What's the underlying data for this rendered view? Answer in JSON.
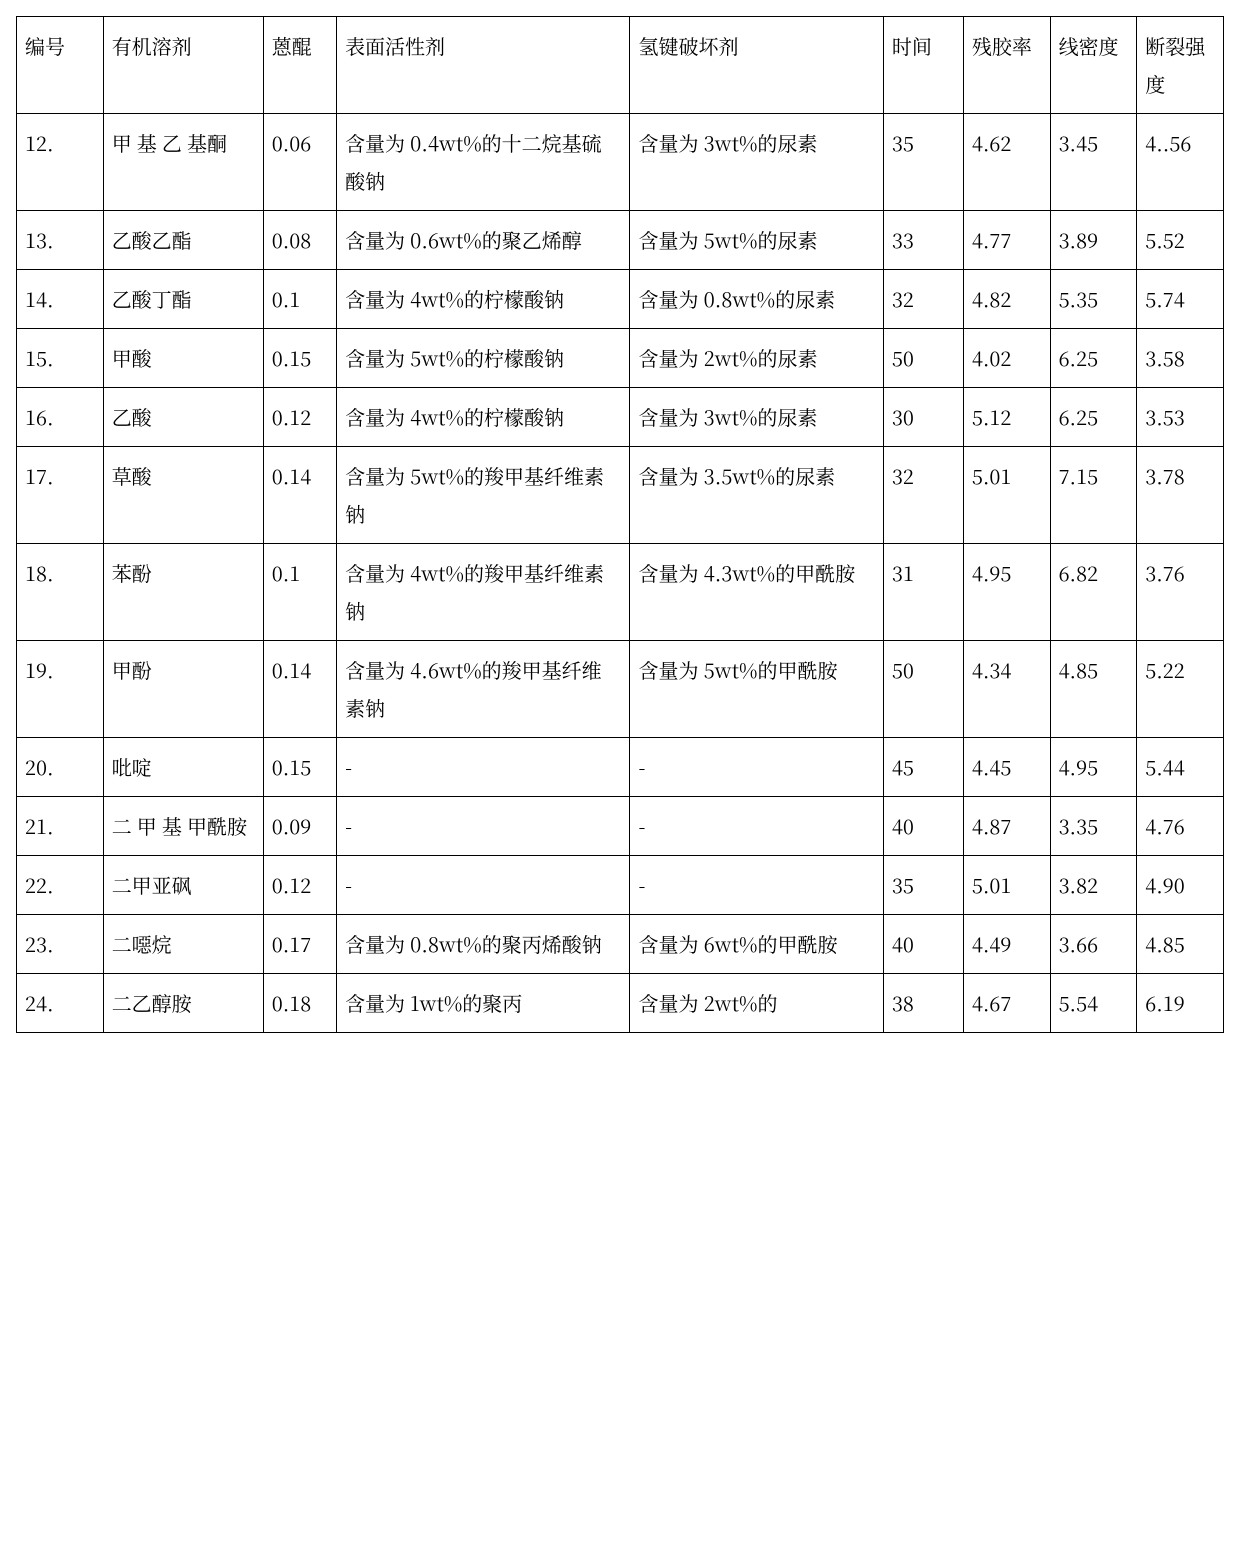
{
  "table": {
    "background_color": "#ffffff",
    "border_color": "#000000",
    "border_width": 1.5,
    "cell_padding": "10px 8px",
    "font_size": 20,
    "line_height": 1.9,
    "font_family": "Songti SC, SimSun, Noto Serif CJK SC, serif",
    "col_widths_pct": [
      6.5,
      12.0,
      5.5,
      22.0,
      19.0,
      6.0,
      6.5,
      6.5,
      6.5
    ],
    "columns": [
      "编号",
      "有机溶剂",
      "蒽醌",
      "表面活性剂",
      "氢键破坏剂",
      "时间",
      "残胶率",
      "线密度",
      "断裂强度"
    ],
    "rows": [
      [
        "12.",
        "甲 基 乙 基酮",
        "0.06",
        "含量为 0.4wt%的十二烷基硫酸钠",
        "含量为 3wt%的尿素",
        "35",
        "4.62",
        "3.45",
        "4..56"
      ],
      [
        "13.",
        "乙酸乙酯",
        "0.08",
        "含量为 0.6wt%的聚乙烯醇",
        "含量为 5wt%的尿素",
        "33",
        "4.77",
        "3.89",
        "5.52"
      ],
      [
        "14.",
        "乙酸丁酯",
        "0.1",
        "含量为 4wt%的柠檬酸钠",
        "含量为 0.8wt%的尿素",
        "32",
        "4.82",
        "5.35",
        "5.74"
      ],
      [
        "15.",
        "甲酸",
        "0.15",
        "含量为 5wt%的柠檬酸钠",
        "含量为 2wt%的尿素",
        "50",
        "4.02",
        "6.25",
        "3.58"
      ],
      [
        "16.",
        "乙酸",
        "0.12",
        "含量为 4wt%的柠檬酸钠",
        "含量为 3wt%的尿素",
        "30",
        "5.12",
        "6.25",
        "3.53"
      ],
      [
        "17.",
        "草酸",
        "0.14",
        "含量为 5wt%的羧甲基纤维素钠",
        "含量为 3.5wt%的尿素",
        "32",
        "5.01",
        "7.15",
        "3.78"
      ],
      [
        "18.",
        "苯酚",
        "0.1",
        "含量为 4wt%的羧甲基纤维素钠",
        "含量为 4.3wt%的甲酰胺",
        "31",
        "4.95",
        "6.82",
        "3.76"
      ],
      [
        "19.",
        "甲酚",
        "0.14",
        "含量为 4.6wt%的羧甲基纤维素钠",
        "含量为 5wt%的甲酰胺",
        "50",
        "4.34",
        "4.85",
        "5.22"
      ],
      [
        "20.",
        "吡啶",
        "0.15",
        "-",
        "-",
        "45",
        "4.45",
        "4.95",
        "5.44"
      ],
      [
        "21.",
        "二 甲 基 甲酰胺",
        "0.09",
        "-",
        "-",
        "40",
        "4.87",
        "3.35",
        "4.76"
      ],
      [
        "22.",
        "二甲亚砜",
        "0.12",
        "-",
        "-",
        "35",
        "5.01",
        "3.82",
        "4.90"
      ],
      [
        "23.",
        "二噁烷",
        "0.17",
        "含量为 0.8wt%的聚丙烯酸钠",
        "含量为 6wt%的甲酰胺",
        "40",
        "4.49",
        "3.66",
        "4.85"
      ],
      [
        "24.",
        "二乙醇胺",
        "0.18",
        "含量为 1wt%的聚丙",
        "含量为 2wt%的",
        "38",
        "4.67",
        "5.54",
        "6.19"
      ]
    ]
  }
}
